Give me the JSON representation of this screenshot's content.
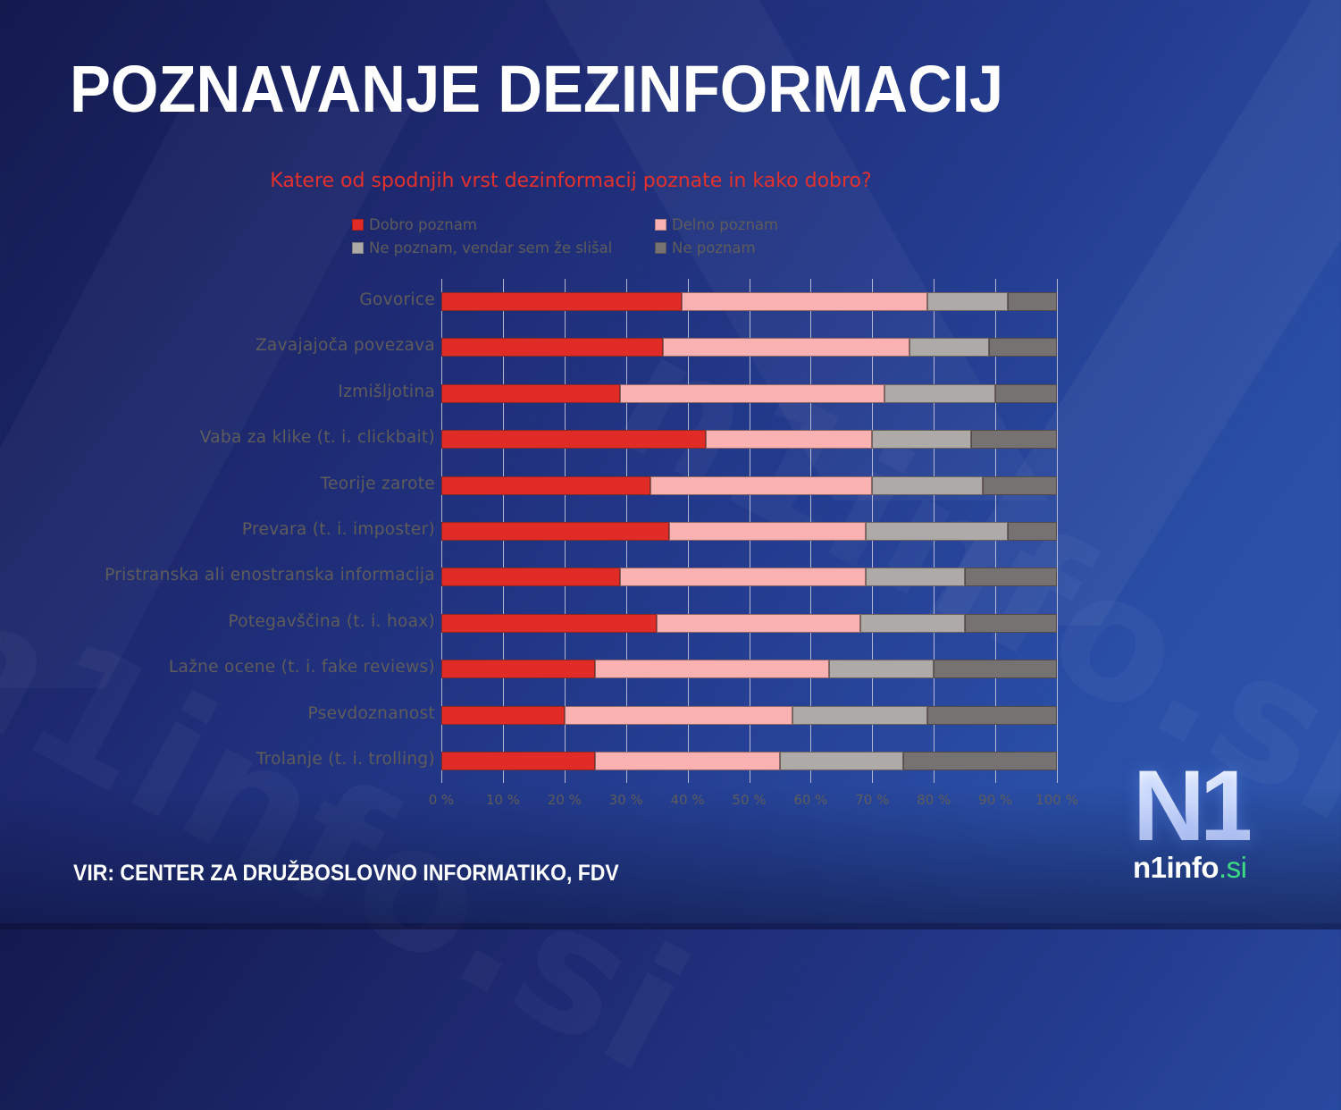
{
  "header": {
    "title": "POZNAVANJE DEZINFORMACIJ"
  },
  "chart_data": {
    "type": "bar",
    "orientation": "horizontal",
    "stacked": "percent",
    "title": "Katere od spodnjih vrst dezinformacij poznate in kako dobro?",
    "xlabel": "",
    "ylabel": "",
    "xlim": [
      0,
      100
    ],
    "grid": true,
    "legend_position": "top",
    "x_tick_labels": [
      "0 %",
      "10 %",
      "20 %",
      "30 %",
      "40 %",
      "50 %",
      "60 %",
      "70 %",
      "80 %",
      "90 %",
      "100 %"
    ],
    "categories": [
      "Govorice",
      "Zavajajoča povezava",
      "Izmišljotina",
      "Vaba za klike (t. i. clickbait)",
      "Teorije zarote",
      "Prevara (t. i. imposter)",
      "Pristranska ali enostranska informacija",
      "Potegavščina (t. i. hoax)",
      "Lažne ocene (t. i. fake reviews)",
      "Psevdoznanost",
      "Trolanje (t. i. trolling)"
    ],
    "series": [
      {
        "name": "Dobro poznam",
        "color": "#e02b27",
        "values": [
          39,
          36,
          29,
          43,
          34,
          37,
          29,
          35,
          25,
          20,
          25
        ]
      },
      {
        "name": "Delno poznam",
        "color": "#f9b1b2",
        "values": [
          40,
          40,
          43,
          27,
          36,
          32,
          40,
          33,
          38,
          37,
          30
        ]
      },
      {
        "name": "Ne poznam, vendar sem že slišal",
        "color": "#aeaaa8",
        "values": [
          13,
          13,
          18,
          16,
          18,
          23,
          16,
          17,
          17,
          22,
          20
        ]
      },
      {
        "name": "Ne poznam",
        "color": "#767271",
        "values": [
          8,
          11,
          10,
          14,
          12,
          8,
          15,
          15,
          20,
          21,
          25
        ]
      }
    ]
  },
  "legend": {
    "items": [
      {
        "label": "Dobro poznam",
        "color": "#e02b27"
      },
      {
        "label": "Delno poznam",
        "color": "#f9b1b2"
      },
      {
        "label": "Ne poznam, vendar sem že slišal",
        "color": "#aeaaa8"
      },
      {
        "label": "Ne poznam",
        "color": "#767271"
      }
    ]
  },
  "footer": {
    "source": "VIR: CENTER ZA DRUŽBOSLOVNO INFORMATIKO, FDV",
    "logo_mark": "N1",
    "logo_site": "n1info",
    "logo_tld": ".si"
  }
}
